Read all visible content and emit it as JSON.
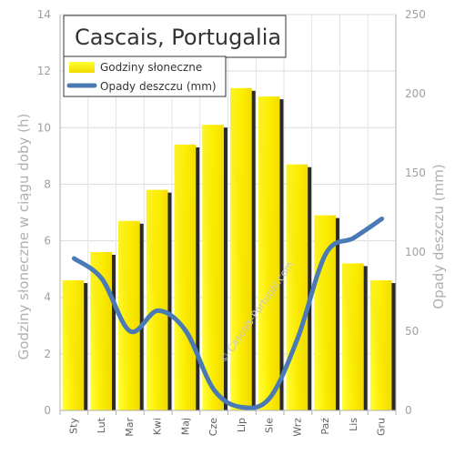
{
  "chart_data": {
    "type": "bar",
    "title": "Cascais, Portugalia",
    "categories": [
      "Sty",
      "Lut",
      "Mar",
      "Kwi",
      "Maj",
      "Cze",
      "Lip",
      "Sie",
      "Wrz",
      "Paź",
      "Lis",
      "Gru"
    ],
    "series": [
      {
        "name": "Godziny słoneczne",
        "type": "bar",
        "axis": "left",
        "color": "#ffff00",
        "values": [
          4.6,
          5.6,
          6.7,
          7.8,
          9.4,
          10.1,
          11.4,
          11.1,
          8.7,
          6.9,
          5.2,
          4.6
        ]
      },
      {
        "name": "Opady deszczu (mm)",
        "type": "line",
        "axis": "right",
        "color": "#4a7ab5",
        "values": [
          96,
          83,
          50,
          63,
          50,
          13,
          2,
          8,
          46,
          99,
          109,
          121
        ]
      }
    ],
    "ylabel": "Godziny słoneczne w ciągu doby (h)",
    "y2label": "Opady deszczu (mm)",
    "ylim": [
      0,
      14
    ],
    "y_ticks": [
      0,
      2,
      4,
      6,
      8,
      10,
      12,
      14
    ],
    "y2lim": [
      0,
      250
    ],
    "y2_ticks": [
      0,
      50,
      100,
      150,
      200,
      250
    ],
    "grid": true,
    "legend": "top-left",
    "watermark": "© Cascais-Portugal.com"
  }
}
